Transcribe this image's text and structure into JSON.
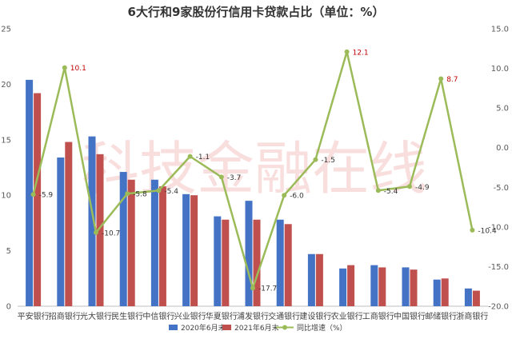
{
  "chart_data": {
    "type": "bar",
    "title": "6大行和9家股份行信用卡贷款占比（单位：%）",
    "watermark": "科技金融在线",
    "categories": [
      "平安银行",
      "招商银行",
      "光大银行",
      "民生银行",
      "中信银行",
      "兴业银行",
      "华夏银行",
      "浦发银行",
      "交通银行",
      "建设银行",
      "农业银行",
      "工商银行",
      "中国银行",
      "邮储银行",
      "浙商银行"
    ],
    "series": [
      {
        "name": "2020年6月末",
        "type": "bar",
        "axis": "left",
        "color": "#4472c4",
        "values": [
          20.4,
          13.4,
          15.3,
          12.1,
          11.4,
          10.1,
          8.1,
          9.5,
          7.8,
          4.7,
          3.4,
          3.7,
          3.5,
          2.4,
          1.6
        ]
      },
      {
        "name": "2021年6月末",
        "type": "bar",
        "axis": "left",
        "color": "#c0504d",
        "values": [
          19.2,
          14.8,
          13.7,
          11.4,
          10.8,
          10.0,
          7.8,
          7.8,
          7.4,
          4.7,
          3.7,
          3.5,
          3.3,
          2.5,
          1.4
        ]
      },
      {
        "name": "同比增速（%）",
        "type": "line",
        "axis": "right",
        "color": "#9bbb59",
        "values": [
          -5.9,
          10.1,
          -10.7,
          -5.8,
          -5.4,
          -1.1,
          -3.7,
          -17.7,
          -6.0,
          -1.5,
          12.1,
          -5.4,
          -4.9,
          8.7,
          -10.4
        ],
        "labels": [
          "-5.9",
          "10.1",
          "-10.7",
          "-5.8",
          "-5.4",
          "-1.1",
          "-3.7",
          "-17.7",
          "-6.0",
          "-1.5",
          "12.1",
          "-5.4",
          "-4.9",
          "8.7",
          "-10.4"
        ]
      }
    ],
    "y_left": {
      "range": [
        0,
        25
      ],
      "ticks": [
        "0",
        "5",
        "10",
        "15",
        "20",
        "25"
      ]
    },
    "y_right": {
      "range": [
        -20,
        15
      ],
      "ticks": [
        "-20.0",
        "-15.0",
        "-10.0",
        "-5.0",
        "0.0",
        "5.0",
        "10.0",
        "15.0"
      ]
    },
    "grid": false,
    "legend_position": "bottom"
  }
}
